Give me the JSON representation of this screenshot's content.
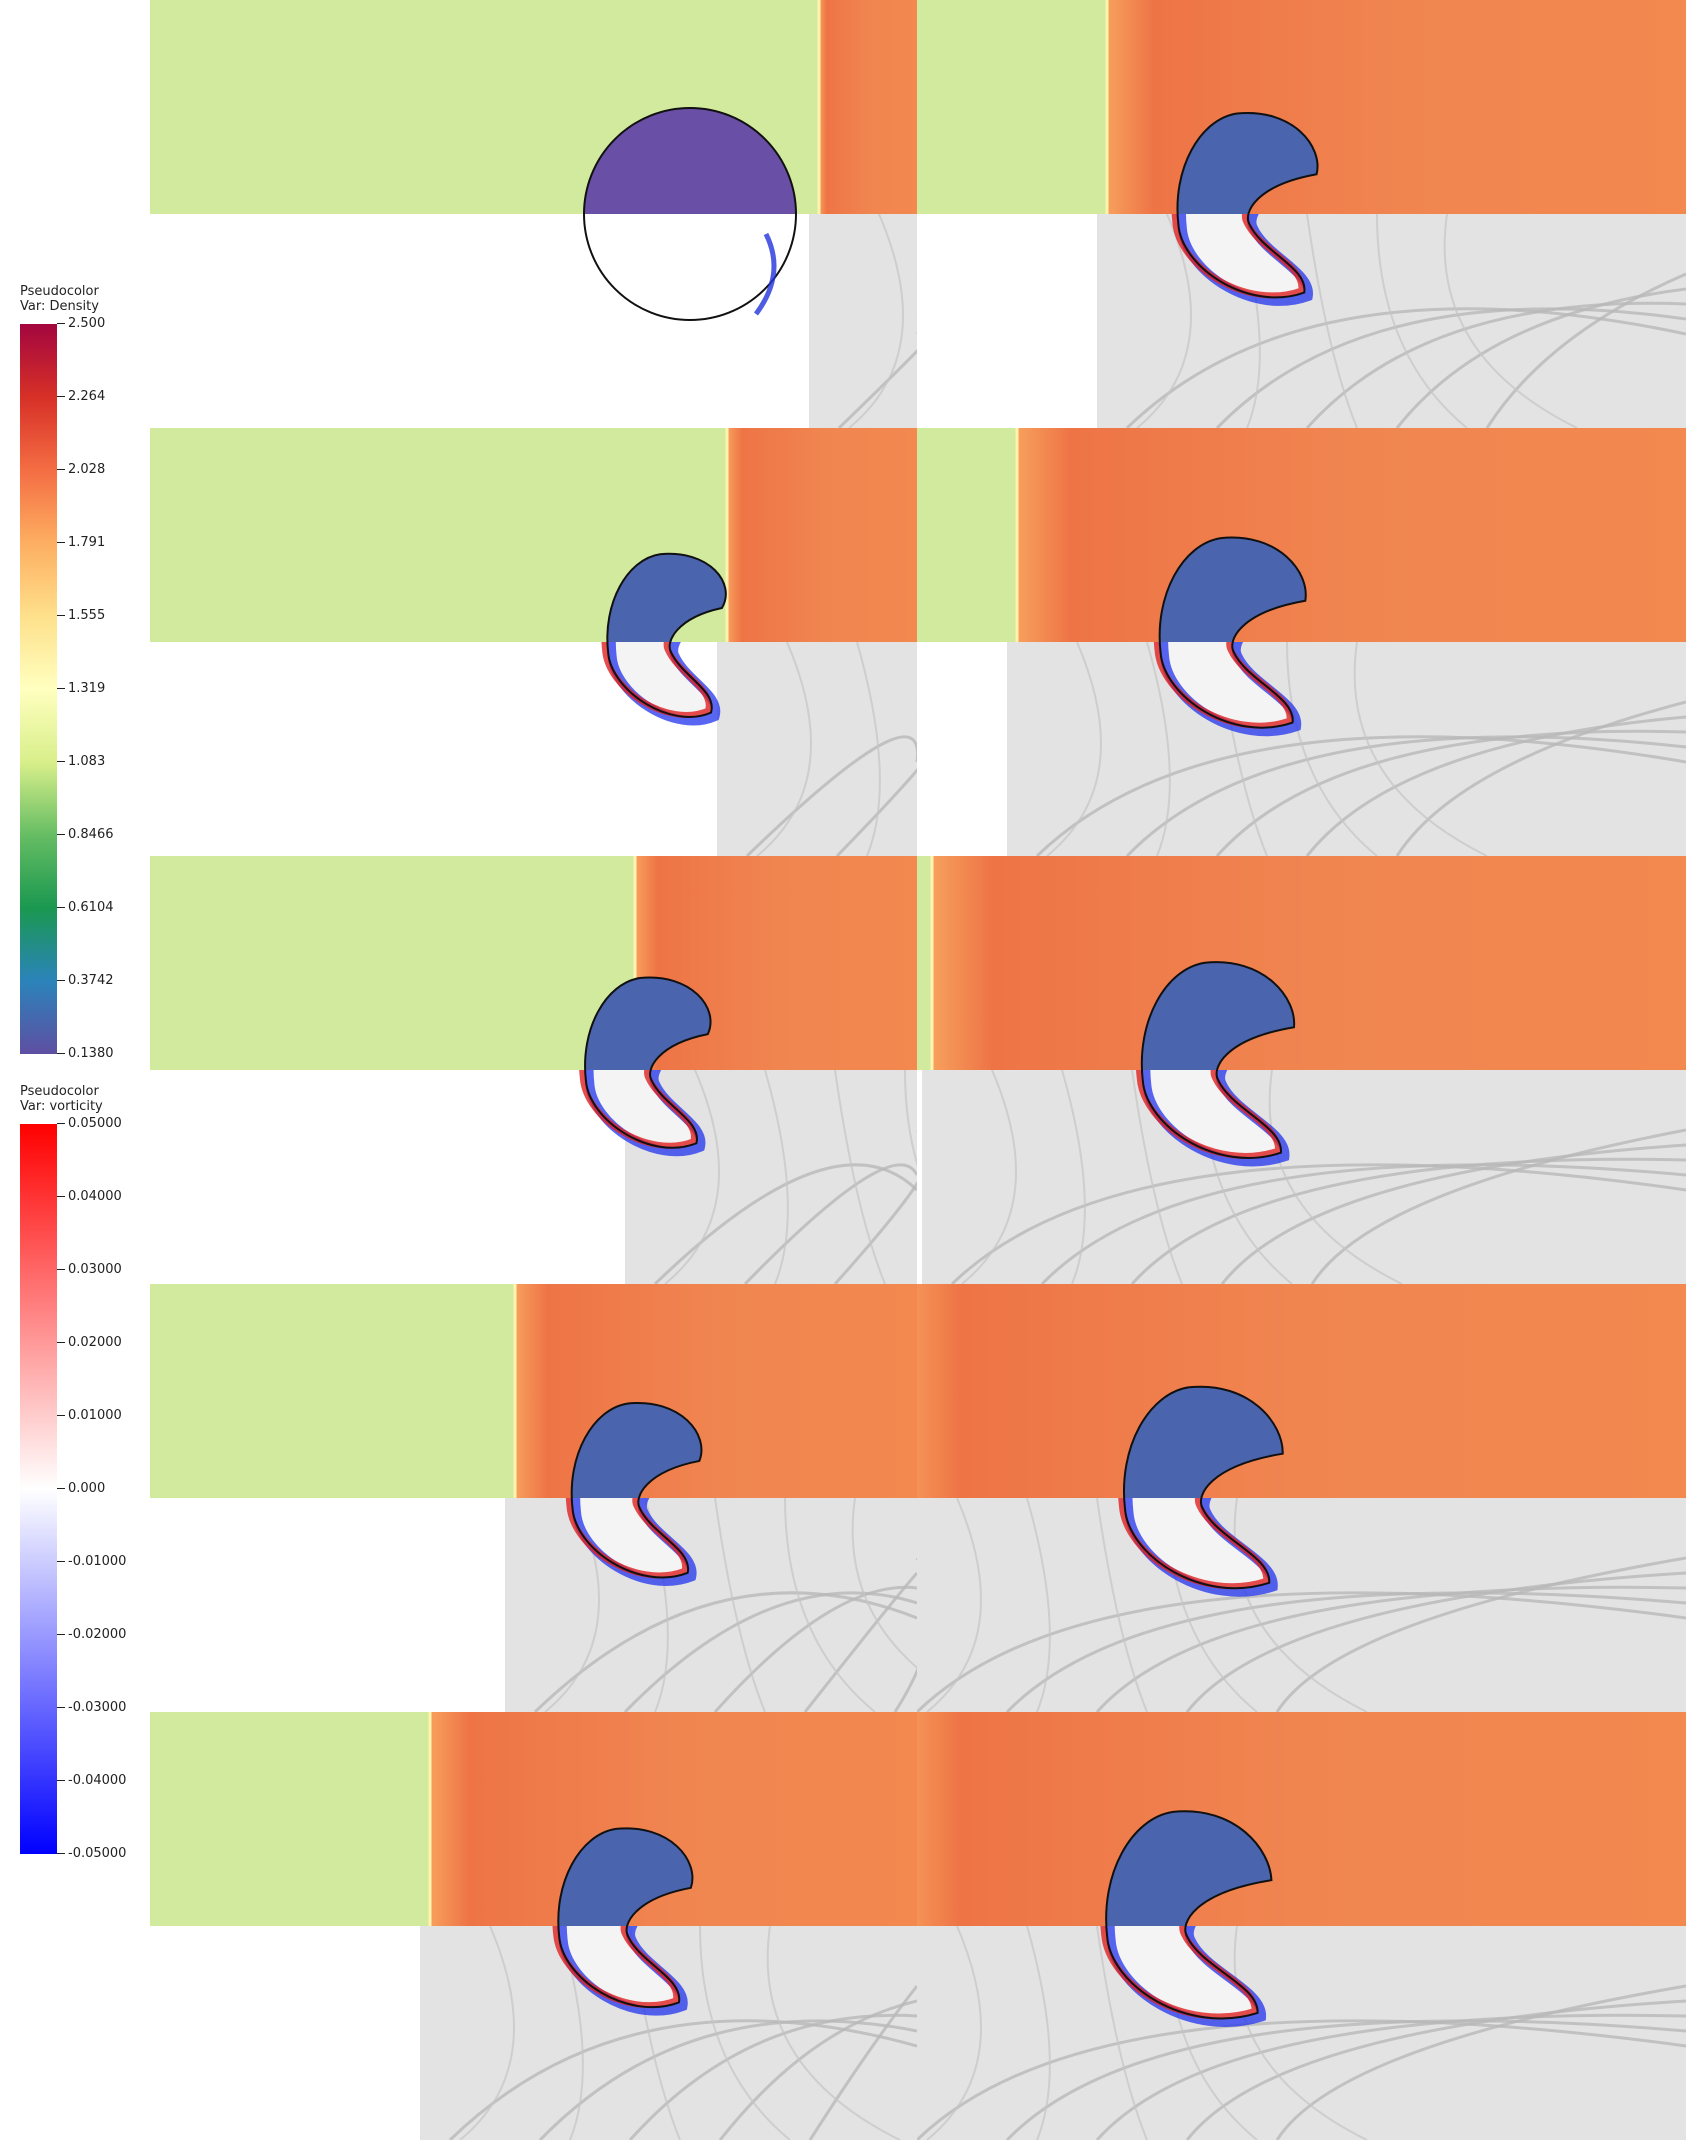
{
  "legends": {
    "density": {
      "title": "Pseudocolor",
      "var_label": "Var: Density",
      "ticks": [
        "2.500",
        "2.264",
        "2.028",
        "1.791",
        "1.555",
        "1.319",
        "1.083",
        "0.8466",
        "0.6104",
        "0.3742",
        "0.1380"
      ],
      "colors": [
        "#a3063f",
        "#d73027",
        "#f46d43",
        "#fdae61",
        "#fee08b",
        "#ffffbf",
        "#d9ef8b",
        "#66bd63",
        "#1a9850",
        "#2b83ba",
        "#5e4fa2"
      ]
    },
    "vorticity": {
      "title": "Pseudocolor",
      "var_label": "Var: vorticity",
      "ticks": [
        "0.05000",
        "0.04000",
        "0.03000",
        "0.02000",
        "0.01000",
        "0.000",
        "-0.01000",
        "-0.02000",
        "-0.03000",
        "-0.04000",
        "-0.05000"
      ],
      "colors": [
        "#ff0000",
        "#ffffff",
        "#0000ff"
      ]
    }
  },
  "field_colors": {
    "pre_shock": "#d2ea9d",
    "post_shock": "#f0834e",
    "bubble": "#4a64ad",
    "initial_bubble": "#6a4fa6",
    "schlieren": "#e3e3e3"
  }
}
